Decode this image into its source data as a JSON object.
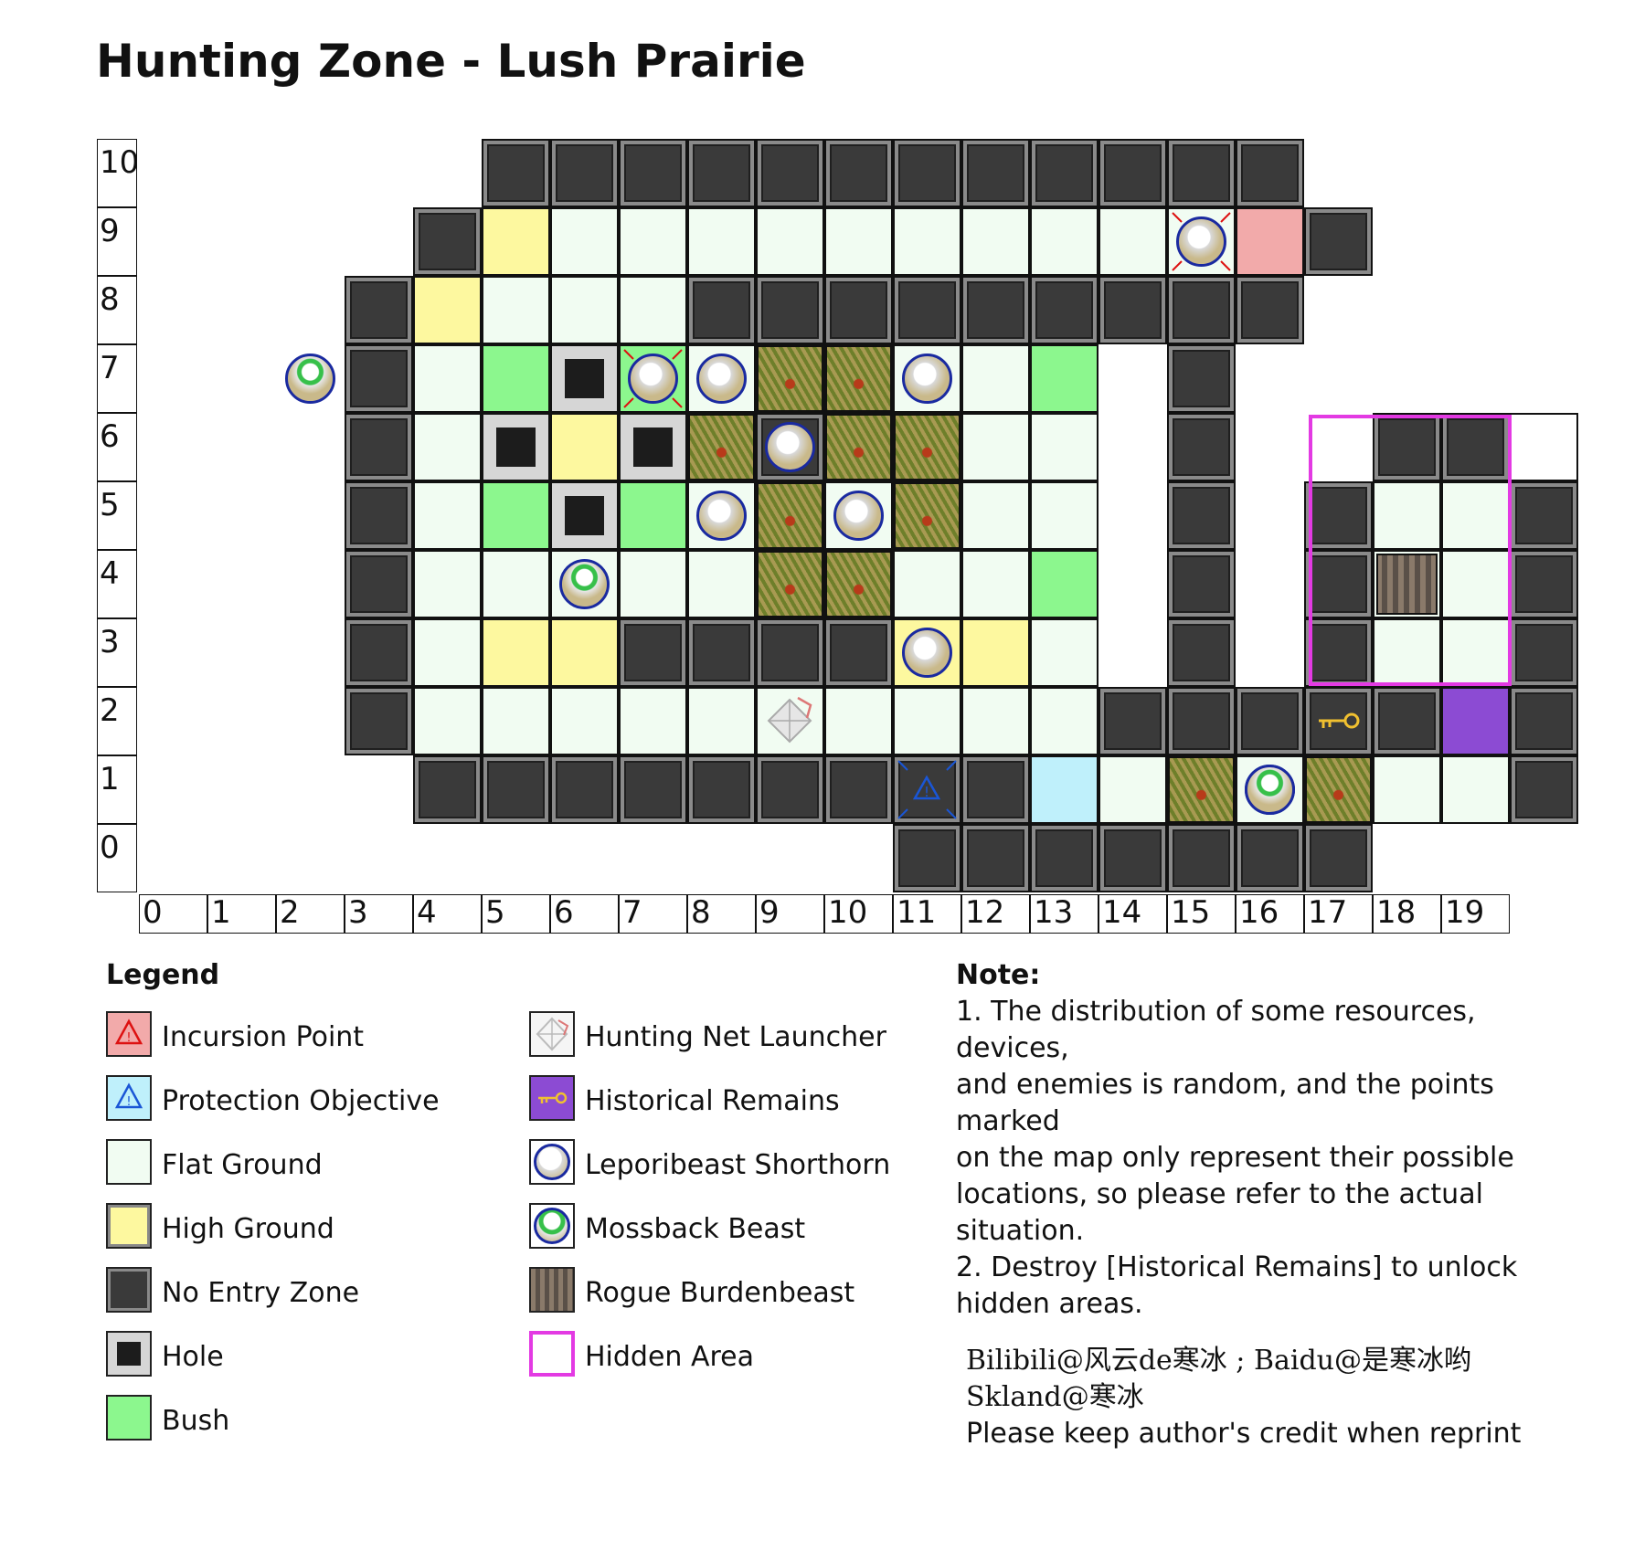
{
  "title": "Hunting Zone - Lush Prairie",
  "x_axis_labels": [
    "0",
    "1",
    "2",
    "3",
    "4",
    "5",
    "6",
    "7",
    "8",
    "9",
    "10",
    "11",
    "12",
    "13",
    "14",
    "15",
    "16",
    "17",
    "18",
    "19"
  ],
  "y_axis_labels": [
    "10",
    "9",
    "8",
    "7",
    "6",
    "5",
    "4",
    "3",
    "2",
    "1",
    "0"
  ],
  "grid_rows": [
    ".....XXXXXXXXXXXX...",
    "....XHFFFFFFFFFFIX..",
    "...XHFFFXXXXXXXXX...",
    "...XFBOBFIBFFB.X....",
    "...XFOHOFXFFFF.X..XXE",
    "...XFBOBFXFFFF.X.XFFX",
    "...XFFFFFFBFFB.X.XFFX",
    "...XFHHXXXXHHF.X.XFFX",
    "...XFFFFFFFNFFXXXXXRX",
    "....XXXXXXXXXPFFFFFFX",
    "...........XXXXXXX.."
  ],
  "colors": {
    "flat_ground": "#f1fcf2",
    "high_ground": "#fdf89f",
    "no_entry": "#3a3a3a",
    "hole": "#1c1c1c",
    "bush": "#8cf78e",
    "incursion_point": "#f2aaaa",
    "protection_objective": "#bff0fb",
    "historical_remains": "#8c4bd3",
    "hidden_area_border": "#e33ae3"
  },
  "map_markers": {
    "bush_overlays": [
      [
        9,
        7
      ],
      [
        10,
        7
      ],
      [
        8,
        6
      ],
      [
        10,
        6
      ],
      [
        11,
        6
      ],
      [
        9,
        5
      ],
      [
        11,
        5
      ],
      [
        9,
        4
      ],
      [
        10,
        4
      ],
      [
        15,
        1
      ],
      [
        17,
        1
      ]
    ],
    "shorthorn": [
      [
        15,
        9
      ],
      [
        7,
        7
      ],
      [
        8,
        7
      ],
      [
        11,
        7
      ],
      [
        9,
        6
      ],
      [
        8,
        5
      ],
      [
        10,
        5
      ],
      [
        11,
        3
      ],
      [
        16,
        1
      ]
    ],
    "mossback": [
      [
        2,
        7
      ],
      [
        6,
        4
      ],
      [
        16,
        1
      ]
    ],
    "burdenbeast": [
      [
        18,
        4
      ]
    ],
    "net_launcher": [
      [
        9,
        2
      ]
    ],
    "incursion": [
      [
        15,
        9
      ],
      [
        7,
        7
      ]
    ],
    "protection": [
      [
        11,
        1
      ]
    ],
    "remains": [
      [
        17,
        2
      ]
    ]
  },
  "legend": {
    "title": "Legend",
    "items": [
      {
        "label": "Incursion Point",
        "icon": "incursion-point-icon"
      },
      {
        "label": "Protection Objective",
        "icon": "protection-objective-icon"
      },
      {
        "label": "Flat Ground",
        "icon": "flat-ground-swatch"
      },
      {
        "label": "High Ground",
        "icon": "high-ground-swatch"
      },
      {
        "label": "No Entry Zone",
        "icon": "no-entry-swatch"
      },
      {
        "label": "Hole",
        "icon": "hole-swatch"
      },
      {
        "label": "Bush",
        "icon": "bush-swatch"
      },
      {
        "label": "Hunting Net Launcher",
        "icon": "net-launcher-icon"
      },
      {
        "label": "Historical Remains",
        "icon": "key-icon"
      },
      {
        "label": "Leporibeast Shorthorn",
        "icon": "shorthorn-icon"
      },
      {
        "label": "Mossback Beast",
        "icon": "mossback-icon"
      },
      {
        "label": "Rogue Burdenbeast",
        "icon": "burdenbeast-icon"
      },
      {
        "label": "Hidden Area",
        "icon": "hidden-area-swatch"
      }
    ]
  },
  "note": {
    "title": "Note:",
    "lines": [
      "1. The distribution of some resources, devices,",
      "and enemies is random, and the points marked",
      "on the map only represent their possible",
      "locations, so please refer to the actual situation.",
      "2. Destroy [Historical Remains] to unlock",
      "hidden areas."
    ]
  },
  "credit": {
    "line1": "Bilibili@风云de寒冰 ; Baidu@是寒冰哟",
    "line2": "Skland@寒冰",
    "line3": "Please keep author's credit when reprint"
  }
}
